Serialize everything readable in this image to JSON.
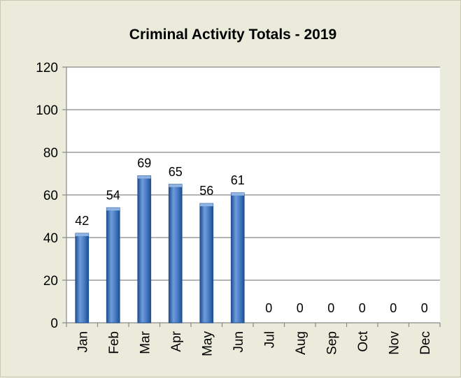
{
  "chart_data": {
    "type": "bar",
    "title": "Criminal Activity Totals - 2019",
    "xlabel": "",
    "ylabel": "",
    "categories": [
      "Jan",
      "Feb",
      "Mar",
      "Apr",
      "May",
      "Jun",
      "Jul",
      "Aug",
      "Sep",
      "Oct",
      "Nov",
      "Dec"
    ],
    "values": [
      42,
      54,
      69,
      65,
      56,
      61,
      0,
      0,
      0,
      0,
      0,
      0
    ],
    "ylim": [
      0,
      120
    ],
    "yticks": [
      0,
      20,
      40,
      60,
      80,
      100,
      120
    ],
    "grid": true,
    "legend": "none",
    "colors": {
      "background": "#ebebdc",
      "plot_area": "#ffffff",
      "bar_light": "#8fb3e3",
      "bar_mid": "#4a7ec6",
      "bar_dark": "#1f4f93",
      "grid": "#888888"
    }
  }
}
